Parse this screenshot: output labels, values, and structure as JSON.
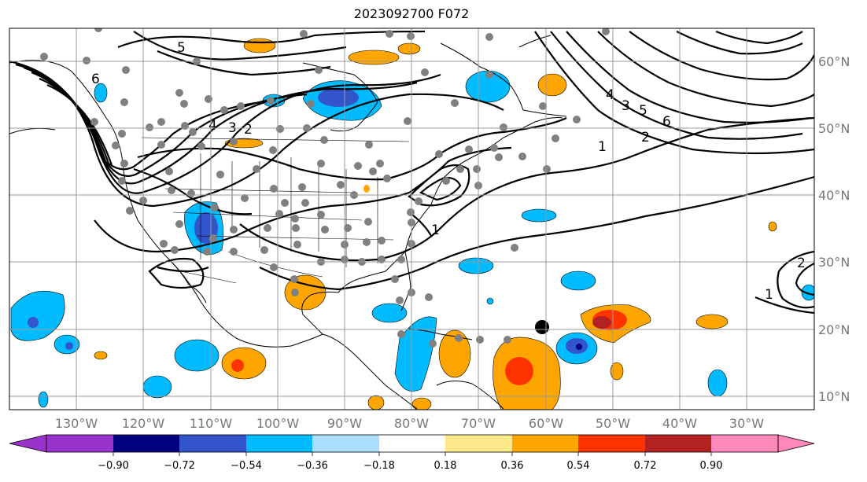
{
  "title": "2023092700 F072",
  "longitude_ticks": [
    "130°W",
    "120°W",
    "110°W",
    "100°W",
    "90°W",
    "80°W",
    "70°W",
    "60°W",
    "50°W",
    "40°W",
    "30°W"
  ],
  "latitude_ticks": [
    "60°N",
    "50°N",
    "40°N",
    "30°N",
    "20°N",
    "10°N"
  ],
  "colorbar": {
    "tick_labels": [
      "−0.90",
      "−0.72",
      "−0.54",
      "−0.36",
      "−0.18",
      "0.18",
      "0.36",
      "0.54",
      "0.72",
      "0.90"
    ],
    "colors": [
      "#9933cc",
      "#000080",
      "#3355cc",
      "#00bbff",
      "#aaddff",
      "#ffffff",
      "#ffe88a",
      "#ffa500",
      "#ff3300",
      "#b22222",
      "#ff88bb"
    ]
  },
  "contour_labels": [
    "5",
    "6",
    "4",
    "3",
    "2",
    "1",
    "4",
    "3",
    "5",
    "6",
    "2",
    "1",
    "2",
    "1"
  ],
  "colors": {
    "land_outline": "#000000",
    "grid": "#999999",
    "station_dot": "#808080",
    "storm_marker": "#000000"
  }
}
